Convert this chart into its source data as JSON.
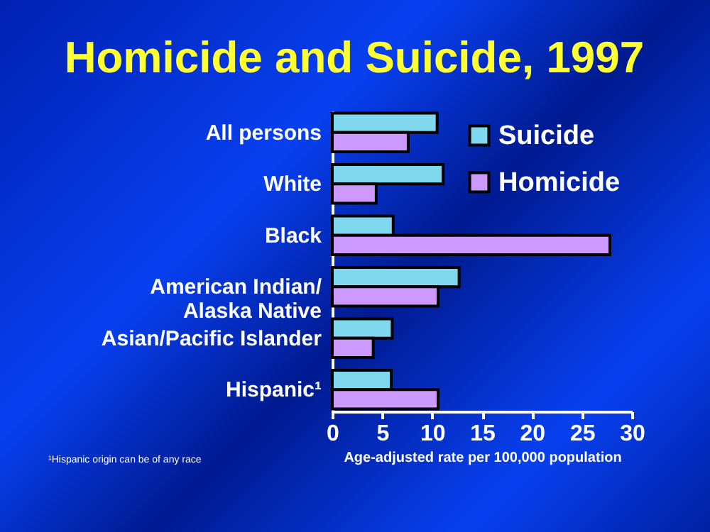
{
  "chart_data": {
    "type": "bar",
    "orientation": "horizontal",
    "title": "Homicide and Suicide, 1997",
    "categories": [
      "All persons",
      "White",
      "Black",
      "American Indian/\nAlaska Native",
      "Asian/Pacific Islander",
      "Hispanic¹"
    ],
    "series": [
      {
        "name": "Suicide",
        "color": "#7fd8ee",
        "values": [
          10.5,
          11.1,
          6.1,
          12.7,
          6.0,
          5.9
        ]
      },
      {
        "name": "Homicide",
        "color": "#cc99ff",
        "values": [
          7.6,
          4.4,
          27.8,
          10.6,
          4.1,
          10.6
        ]
      }
    ],
    "xlabel": "Age-adjusted rate per 100,000 population",
    "xlim": [
      0,
      30
    ],
    "xticks": [
      0,
      5,
      10,
      15,
      20,
      25,
      30
    ],
    "legend": "top right",
    "grid": false,
    "annotations": [
      "¹Hispanic origin can be of any race"
    ]
  }
}
